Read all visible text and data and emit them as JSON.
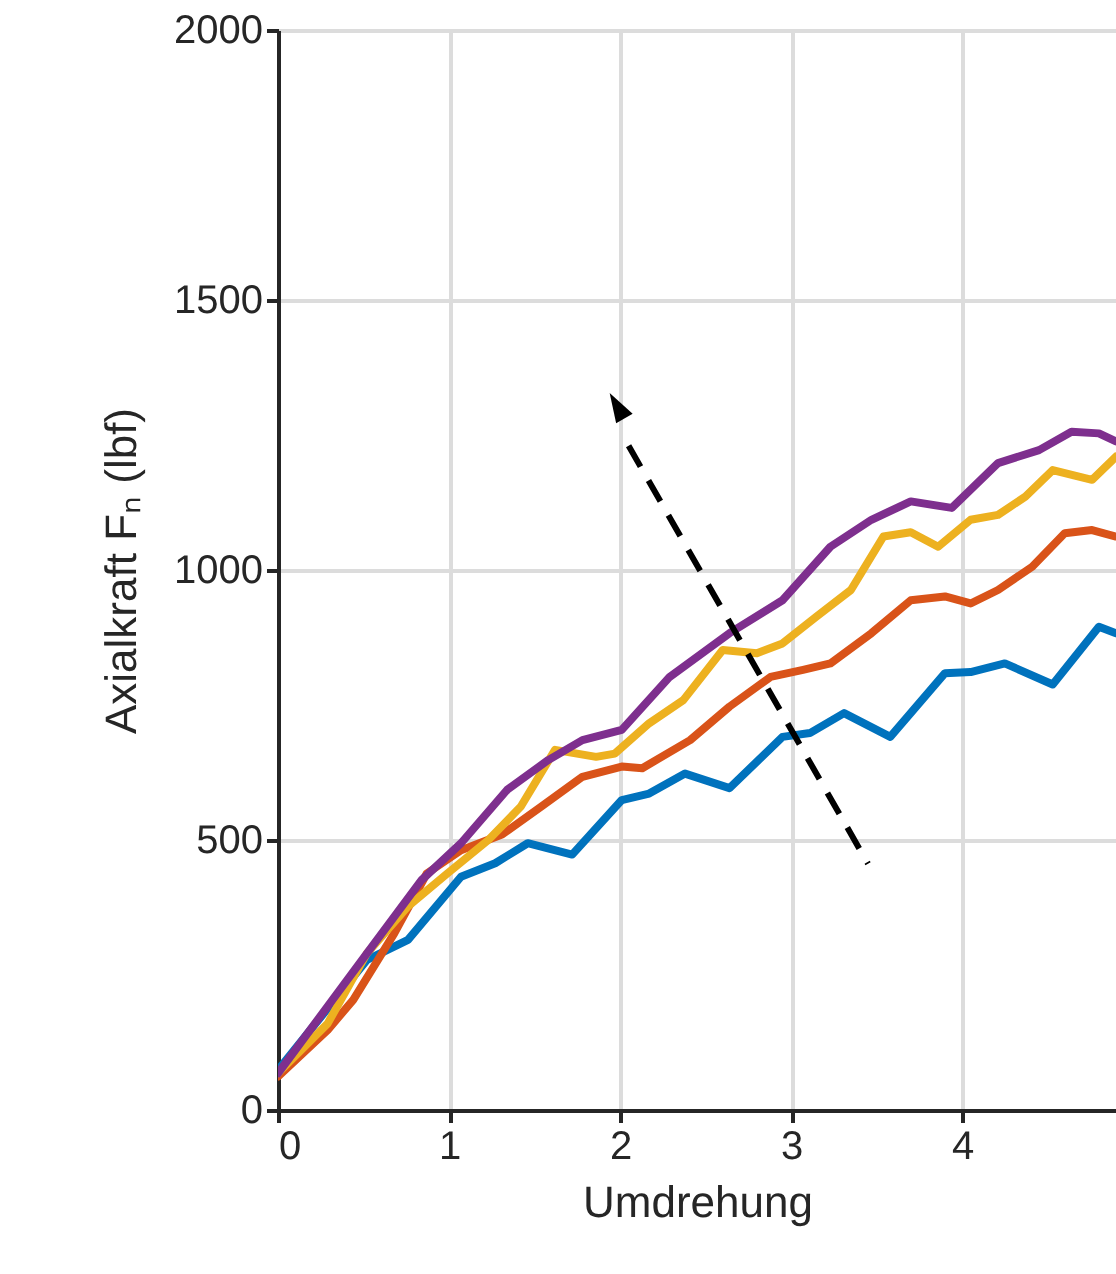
{
  "chart_data": {
    "type": "line",
    "xlabel": "Umdrehung",
    "ylabel": "Axialkraft Fₙ (lbf)",
    "xlim": [
      0,
      4.9
    ],
    "ylim": [
      0,
      2000
    ],
    "xticks": [
      0,
      1,
      2,
      3,
      4
    ],
    "yticks": [
      0,
      500,
      1000,
      1500,
      2000
    ],
    "grid": true,
    "legend": false,
    "marker": "none",
    "line_style": "solid",
    "series": [
      {
        "color": "#0072bd",
        "x": [
          0,
          0.52,
          0.76,
          1.07,
          1.27,
          1.46,
          1.72,
          2.01,
          2.17,
          2.38,
          2.64,
          2.95,
          3.11,
          3.31,
          3.58,
          3.9,
          4.05,
          4.25,
          4.53,
          4.8,
          4.9
        ],
        "values": [
          74,
          278,
          315,
          432,
          457,
          494,
          473,
          574,
          586,
          623,
          596,
          691,
          698,
          735,
          691,
          809,
          811,
          827,
          788,
          895,
          883
        ]
      },
      {
        "color": "#d95319",
        "x": [
          0,
          0.29,
          0.44,
          0.68,
          0.87,
          1.07,
          1.31,
          1.54,
          1.78,
          2.01,
          2.13,
          2.41,
          2.64,
          2.88,
          3.07,
          3.23,
          3.47,
          3.7,
          3.9,
          4.05,
          4.21,
          4.41,
          4.6,
          4.76,
          4.9
        ],
        "values": [
          62,
          148,
          204,
          327,
          438,
          481,
          510,
          562,
          617,
          636,
          633,
          685,
          747,
          802,
          815,
          827,
          883,
          944,
          951,
          938,
          963,
          1006,
          1068,
          1074,
          1062
        ]
      },
      {
        "color": "#edb120",
        "x": [
          0,
          0.29,
          0.52,
          0.76,
          0.99,
          1.23,
          1.42,
          1.62,
          1.86,
          1.97,
          2.17,
          2.37,
          2.6,
          2.8,
          2.95,
          3.15,
          3.35,
          3.54,
          3.7,
          3.86,
          4.05,
          4.21,
          4.37,
          4.53,
          4.76,
          4.9
        ],
        "values": [
          68,
          160,
          290,
          377,
          438,
          500,
          562,
          667,
          654,
          660,
          716,
          759,
          852,
          846,
          864,
          914,
          963,
          1062,
          1070,
          1043,
          1093,
          1102,
          1136,
          1185,
          1167,
          1210
        ]
      },
      {
        "color": "#7e2f8e",
        "x": [
          0,
          0.52,
          0.84,
          1.07,
          1.34,
          1.58,
          1.78,
          2.01,
          2.29,
          2.64,
          2.95,
          3.23,
          3.47,
          3.7,
          3.94,
          4.21,
          4.45,
          4.64,
          4.8,
          4.9
        ],
        "values": [
          68,
          290,
          426,
          494,
          593,
          648,
          685,
          704,
          802,
          883,
          944,
          1043,
          1093,
          1127,
          1115,
          1198,
          1222,
          1256,
          1253,
          1238
        ]
      }
    ]
  }
}
